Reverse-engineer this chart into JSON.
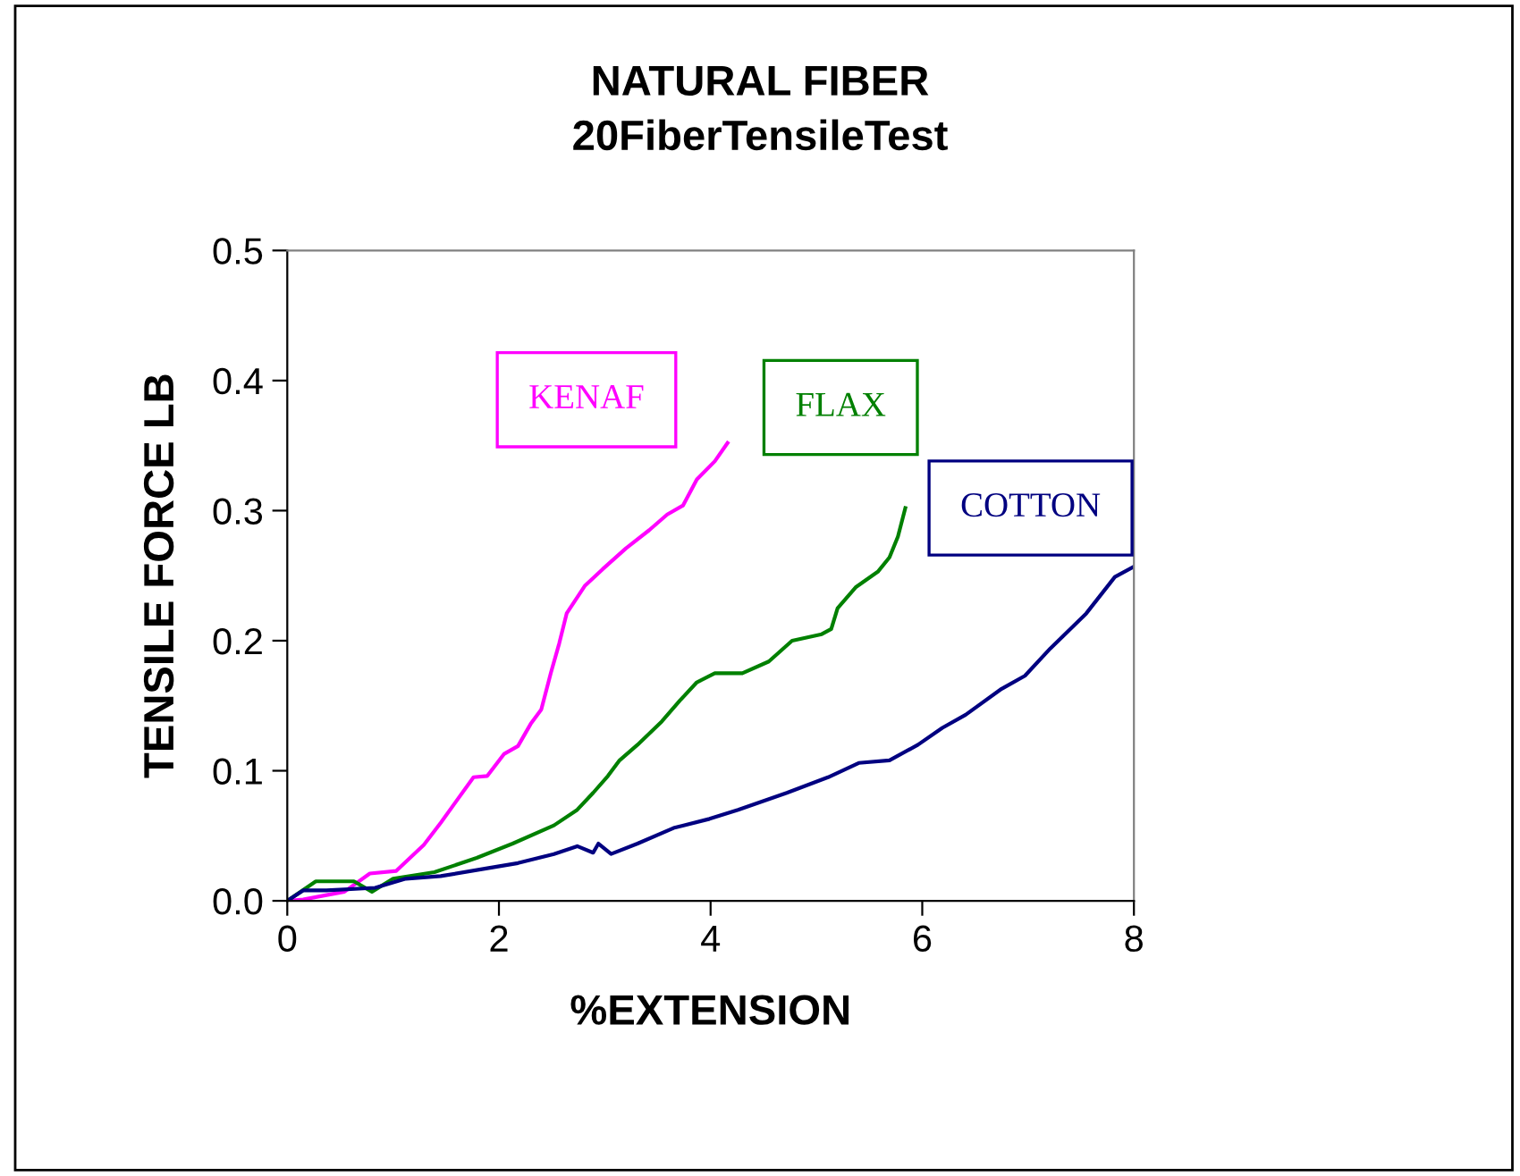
{
  "chart_data": {
    "type": "line",
    "title": "NATURAL FIBER\n20FiberTensileTest",
    "xlabel": "%EXTENSION",
    "ylabel": "TENSILE FORCE LB",
    "xlim": [
      0,
      8
    ],
    "ylim": [
      0,
      0.5
    ],
    "xticks": [
      0,
      2,
      4,
      6,
      8
    ],
    "yticks": [
      {
        "value": 0,
        "label": "0.0"
      },
      0.1,
      0.2,
      0.3,
      0.4,
      0.5
    ],
    "grid": false,
    "legend": false,
    "marker": "none",
    "line_style": "solid",
    "series": [
      {
        "name": "KENAF",
        "color": "#ff00ff",
        "x": [
          0,
          0.15,
          0.54,
          0.78,
          1.03,
          1.29,
          1.45,
          1.76,
          1.89,
          2.05,
          2.18,
          2.3,
          2.4,
          2.49,
          2.57,
          2.64,
          2.81,
          2.98,
          3.2,
          3.42,
          3.59,
          3.74,
          3.87,
          4.04,
          4.16
        ],
        "values": [
          0,
          0.001,
          0.007,
          0.021,
          0.023,
          0.043,
          0.06,
          0.095,
          0.096,
          0.113,
          0.119,
          0.136,
          0.147,
          0.175,
          0.198,
          0.221,
          0.242,
          0.255,
          0.271,
          0.285,
          0.297,
          0.304,
          0.324,
          0.338,
          0.352
        ]
      },
      {
        "name": "FLAX",
        "color": "#008000",
        "x": [
          0,
          0.27,
          0.63,
          0.8,
          1.0,
          1.39,
          1.79,
          2.13,
          2.52,
          2.74,
          2.89,
          3.03,
          3.14,
          3.31,
          3.54,
          3.71,
          3.87,
          4.04,
          4.3,
          4.55,
          4.77,
          5.05,
          5.14,
          5.2,
          5.37,
          5.58,
          5.69,
          5.77,
          5.84
        ],
        "values": [
          0,
          0.015,
          0.015,
          0.007,
          0.017,
          0.022,
          0.033,
          0.044,
          0.058,
          0.07,
          0.083,
          0.096,
          0.108,
          0.12,
          0.138,
          0.154,
          0.168,
          0.175,
          0.175,
          0.184,
          0.2,
          0.205,
          0.209,
          0.225,
          0.241,
          0.253,
          0.264,
          0.28,
          0.302
        ]
      },
      {
        "name": "COTTON",
        "color": "#000080",
        "x": [
          0,
          0.15,
          0.37,
          0.83,
          1.12,
          1.45,
          1.89,
          2.18,
          2.52,
          2.74,
          2.89,
          2.94,
          3.06,
          3.31,
          3.65,
          3.99,
          4.26,
          4.72,
          5.11,
          5.4,
          5.69,
          5.96,
          6.19,
          6.41,
          6.75,
          6.97,
          7.21,
          7.55,
          7.82,
          8.0
        ],
        "values": [
          0,
          0.008,
          0.008,
          0.01,
          0.017,
          0.019,
          0.025,
          0.029,
          0.036,
          0.042,
          0.037,
          0.044,
          0.036,
          0.044,
          0.056,
          0.063,
          0.07,
          0.083,
          0.095,
          0.106,
          0.108,
          0.12,
          0.133,
          0.143,
          0.163,
          0.173,
          0.194,
          0.221,
          0.249,
          0.257
        ]
      }
    ]
  }
}
